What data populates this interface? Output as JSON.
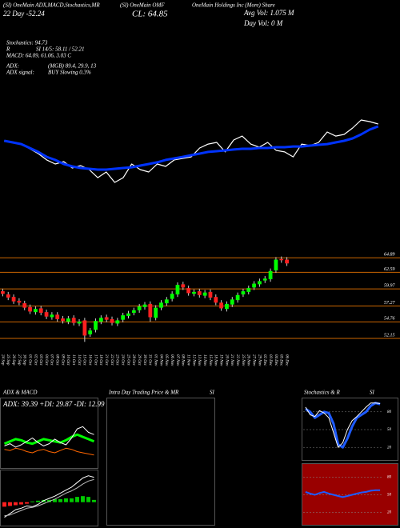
{
  "header": {
    "left": "(SI) OneMain ADX,MACD,Stochastics,MR",
    "ticker": "(SI) OneMain OMF",
    "company": "OneMain Holdings Inc (More) Share",
    "day": "22 Day -52.24",
    "close": "CL: 64.85",
    "avg_vol": "Avg Vol: 1.075 M",
    "day_vol": "Day Vol: 0 M"
  },
  "stats": [
    "Stochastics: 94.73",
    "R",
    "SI 14/5: 58.11 / 52.21",
    "MACD: 64.09, 61.06, 3.03 C",
    "ADX:",
    "(MGB) 89.4, 29.9, 13",
    "ADX signal:",
    "BUY Slowing 0.3%"
  ],
  "chart_data": [
    {
      "type": "line",
      "ylim": [
        0,
        100
      ],
      "series": [
        {
          "color": "#ffffff",
          "values": [
            56.9,
            55.4,
            53.8,
            49.2,
            44.6,
            38.5,
            34.6,
            36.9,
            30.8,
            33.1,
            29.2,
            21.5,
            26.9,
            16.9,
            21.5,
            34.6,
            29.2,
            26.9,
            34.6,
            32.3,
            38.5,
            40.0,
            41.5,
            50.0,
            53.8,
            55.4,
            46.2,
            57.7,
            61.5,
            53.8,
            50.8,
            55.4,
            47.7,
            46.2,
            41.5,
            53.8,
            52.3,
            55.4,
            65.4,
            61.5,
            63.1,
            69.2,
            76.9,
            75.4,
            73.1
          ]
        },
        {
          "color": "#0033ff",
          "values": [
            56.9,
            55.4,
            53.8,
            50.0,
            46.2,
            41.5,
            38.5,
            34.6,
            32.3,
            30.8,
            30.0,
            29.2,
            29.2,
            30.0,
            30.8,
            31.5,
            33.1,
            34.6,
            36.2,
            38.5,
            40.0,
            41.5,
            43.1,
            44.6,
            46.2,
            46.9,
            47.7,
            48.5,
            49.2,
            49.2,
            50.0,
            50.0,
            50.8,
            50.8,
            51.5,
            51.5,
            52.3,
            53.1,
            53.8,
            55.4,
            56.9,
            59.2,
            63.1,
            67.7,
            70.8
          ]
        }
      ]
    },
    {
      "type": "candlestick",
      "ylim": [
        50,
        67.7
      ],
      "yticks": [
        64.89,
        62.59,
        59.97,
        57.27,
        54.76,
        52.15
      ],
      "grid_color": "#cc6600",
      "up_color": "#00ff00",
      "down_color": "#ff2020",
      "categories": [
        "24 Sep",
        "25 Sep",
        "26 Sep",
        "27 Sep",
        "30 Sep",
        "01 Oct",
        "02 Oct",
        "03 Oct",
        "04 Oct",
        "07 Oct",
        "08 Oct",
        "09 Oct",
        "10 Oct",
        "11 Oct",
        "14 Oct",
        "15 Oct",
        "16 Oct",
        "17 Oct",
        "18 Oct",
        "21 Oct",
        "22 Oct",
        "23 Oct",
        "24 Oct",
        "25 Oct",
        "28 Oct",
        "29 Oct",
        "30 Oct",
        "31 Oct",
        "01 Nov",
        "04 Nov",
        "05 Nov",
        "06 Nov",
        "07 Nov",
        "08 Nov",
        "11 Nov",
        "12 Nov",
        "13 Nov",
        "14 Nov",
        "15 Nov",
        "18 Nov",
        "19 Nov",
        "20 Nov",
        "21 Nov",
        "22 Nov",
        "25 Nov",
        "26 Nov",
        "27 Nov",
        "29 Nov",
        "02 Dec",
        "03 Dec",
        "04 Dec",
        "05 Dec",
        "06 Dec"
      ],
      "open": [
        59.6,
        59.1,
        58.7,
        58.1,
        57.7,
        57.1,
        56.3,
        56.9,
        56.3,
        55.5,
        55.9,
        55.3,
        54.8,
        55.4,
        54.5,
        55.0,
        52.8,
        53.5,
        54.8,
        55.5,
        55.2,
        54.5,
        55.1,
        55.7,
        56.2,
        56.6,
        57.1,
        57.6,
        55.4,
        57.0,
        57.7,
        58.4,
        59.1,
        60.7,
        60.1,
        59.2,
        59.6,
        58.9,
        59.5,
        58.7,
        57.8,
        56.8,
        57.5,
        58.2,
        59.1,
        59.5,
        60.2,
        60.7,
        61.3,
        61.5,
        62.9,
        64.7,
        64.6
      ],
      "high": [
        60.0,
        59.5,
        59.1,
        58.5,
        58.1,
        57.5,
        57.2,
        57.3,
        56.7,
        56.3,
        56.3,
        55.7,
        55.7,
        55.8,
        55.2,
        55.4,
        53.8,
        55.3,
        55.8,
        55.9,
        55.6,
        55.4,
        56.2,
        56.5,
        57.0,
        57.6,
        57.9,
        58.0,
        57.4,
        58.2,
        58.7,
        59.6,
        61.0,
        61.1,
        60.5,
        59.9,
        60.0,
        59.8,
        59.9,
        59.1,
        58.2,
        58.0,
        58.7,
        59.4,
        60.0,
        60.5,
        61.2,
        61.6,
        62.0,
        63.2,
        65.0,
        65.1,
        65.0
      ],
      "low": [
        58.8,
        58.2,
        57.6,
        57.4,
        56.6,
        56.0,
        55.9,
        55.8,
        55.2,
        55.1,
        54.8,
        54.5,
        54.4,
        54.2,
        54.1,
        51.6,
        52.4,
        53.1,
        54.4,
        54.7,
        54.2,
        54.1,
        54.7,
        55.3,
        55.8,
        56.2,
        56.7,
        54.8,
        55.0,
        56.6,
        57.3,
        58.0,
        58.7,
        59.8,
        58.9,
        58.8,
        58.6,
        58.5,
        58.2,
        57.4,
        56.5,
        56.4,
        57.1,
        57.8,
        58.7,
        59.1,
        59.8,
        60.3,
        60.9,
        61.1,
        62.5,
        64.1,
        63.6
      ],
      "close": [
        59.2,
        58.6,
        58.0,
        57.8,
        57.0,
        56.4,
        56.8,
        56.2,
        55.6,
        55.9,
        55.2,
        54.9,
        55.3,
        54.6,
        54.8,
        52.6,
        53.4,
        54.9,
        55.4,
        55.1,
        54.6,
        55.0,
        55.8,
        56.1,
        56.6,
        57.2,
        57.5,
        55.5,
        57.0,
        57.8,
        58.3,
        59.2,
        60.6,
        60.2,
        59.3,
        59.5,
        59.0,
        59.4,
        58.6,
        57.8,
        56.9,
        57.6,
        58.3,
        59.0,
        59.6,
        60.1,
        60.8,
        61.2,
        61.6,
        62.8,
        64.6,
        64.5,
        64.0
      ]
    },
    {
      "type": "line",
      "title": "ADX & MACD",
      "subtitle": "ADX: 39.39 +DI: 29.87 -DI: 12.99",
      "ylim": [
        0,
        50
      ],
      "series": [
        {
          "color": "#00ff00",
          "values": [
            20,
            22,
            24,
            23,
            21,
            20,
            22,
            24,
            23,
            22,
            21,
            23,
            26,
            28,
            26,
            24,
            22
          ]
        },
        {
          "color": "#ffffff",
          "values": [
            18,
            20,
            17,
            19,
            22,
            25,
            21,
            18,
            20,
            24,
            21,
            19,
            25,
            33,
            35,
            30,
            28
          ]
        },
        {
          "color": "#ff6600",
          "values": [
            15,
            14,
            16,
            15,
            13,
            12,
            14,
            15,
            13,
            12,
            14,
            16,
            15,
            13,
            12,
            11,
            10
          ]
        }
      ]
    },
    {
      "type": "macd",
      "ylim": [
        -3,
        4
      ],
      "pos_color": "#00cc00",
      "neg_color": "#ff2020",
      "histogram": [
        -0.6,
        -0.5,
        -0.4,
        -0.3,
        -0.2,
        0.1,
        0.2,
        0.3,
        0.3,
        0.4,
        0.4,
        0.5,
        0.5,
        0.7,
        0.8,
        0.7,
        0.3
      ],
      "series": [
        {
          "color": "#ffffff",
          "values": [
            -2,
            -1.5,
            -1,
            -0.8,
            -0.5,
            -0.6,
            -0.3,
            0.2,
            0.5,
            0.8,
            1.2,
            1.6,
            2.0,
            2.6,
            3.2,
            3.5,
            3.3
          ]
        },
        {
          "color": "#bbbbbb",
          "values": [
            -1.8,
            -1.7,
            -1.4,
            -1.1,
            -0.8,
            -0.7,
            -0.5,
            -0.2,
            0.1,
            0.4,
            0.8,
            1.2,
            1.5,
            1.9,
            2.4,
            2.8,
            3.0
          ]
        }
      ]
    },
    {
      "type": "blank",
      "title": [
        "Intra Day Trading Price & MR",
        "SI"
      ]
    },
    {
      "type": "line",
      "title": [
        "Stochastics & R",
        "SI"
      ],
      "ylim": [
        0,
        100
      ],
      "yticks": [
        20,
        50,
        80
      ],
      "series": [
        {
          "color": "#1e5bff",
          "values": [
            85,
            80,
            70,
            75,
            80,
            78,
            60,
            25,
            20,
            35,
            55,
            70,
            75,
            80,
            90,
            95,
            93
          ]
        },
        {
          "color": "#ffffff",
          "values": [
            88,
            75,
            72,
            82,
            78,
            70,
            45,
            20,
            28,
            50,
            65,
            72,
            80,
            88,
            95,
            95,
            94
          ]
        }
      ]
    },
    {
      "type": "line",
      "ylim": [
        0,
        100
      ],
      "yticks": [
        20,
        50,
        80
      ],
      "series": [
        {
          "color": "#1e5bff",
          "values": [
            55,
            52,
            50,
            53,
            55,
            52,
            50,
            48,
            46,
            48,
            50,
            52,
            54,
            55,
            57,
            58,
            58
          ]
        }
      ]
    }
  ]
}
